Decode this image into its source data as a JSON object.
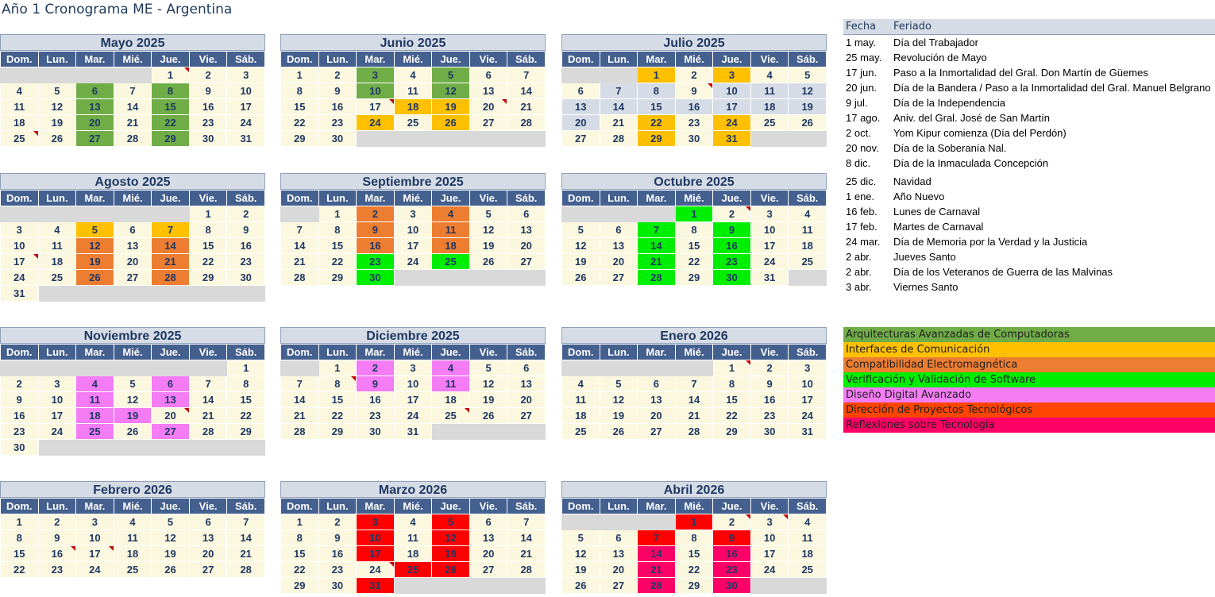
{
  "title": "Año 1 Cronograma ME - Argentina",
  "weekdays": [
    "Dom.",
    "Lun.",
    "Mar.",
    "Mié.",
    "Jue.",
    "Vie.",
    "Sáb."
  ],
  "months": [
    {
      "name": "Mayo 2025",
      "start": 4,
      "days": 31,
      "weeks": 5,
      "colors": {
        "6": "aac",
        "8": "aac",
        "13": "aac",
        "15": "aac",
        "20": "aac",
        "22": "aac",
        "27": "aac",
        "29": "aac"
      },
      "holidays": [
        1,
        25
      ]
    },
    {
      "name": "Junio 2025",
      "start": 0,
      "days": 30,
      "weeks": 5,
      "colors": {
        "3": "aac",
        "5": "aac",
        "10": "aac",
        "12": "aac",
        "18": "int",
        "19": "int",
        "24": "int",
        "26": "int"
      },
      "holidays": [
        17,
        20
      ]
    },
    {
      "name": "Julio 2025",
      "start": 2,
      "days": 31,
      "weeks": 5,
      "colors": {
        "1": "int",
        "3": "int",
        "22": "int",
        "24": "int",
        "29": "int",
        "31": "int"
      },
      "holidays": [
        9
      ],
      "grey": [
        7,
        8,
        9,
        10,
        11,
        12,
        13,
        14,
        15,
        16,
        17,
        18,
        19,
        20
      ]
    },
    {
      "name": "Agosto 2025",
      "start": 5,
      "days": 31,
      "weeks": 6,
      "colors": {
        "5": "int",
        "7": "int",
        "12": "com",
        "14": "com",
        "19": "com",
        "21": "com",
        "26": "com",
        "28": "com"
      },
      "holidays": [
        17
      ]
    },
    {
      "name": "Septiembre 2025",
      "start": 1,
      "days": 30,
      "weeks": 5,
      "colors": {
        "2": "com",
        "4": "com",
        "9": "com",
        "11": "com",
        "16": "com",
        "18": "com",
        "23": "ver",
        "25": "ver",
        "30": "ver"
      },
      "holidays": []
    },
    {
      "name": "Octubre 2025",
      "start": 3,
      "days": 31,
      "weeks": 5,
      "colors": {
        "1": "ver",
        "7": "ver",
        "9": "ver",
        "14": "ver",
        "16": "ver",
        "21": "ver",
        "23": "ver",
        "28": "ver",
        "30": "ver"
      },
      "holidays": [
        2
      ]
    },
    {
      "name": "Noviembre 2025",
      "start": 6,
      "days": 30,
      "weeks": 6,
      "colors": {
        "4": "dis",
        "6": "dis",
        "11": "dis",
        "13": "dis",
        "18": "dis",
        "19": "dis",
        "25": "dis",
        "27": "dis"
      },
      "holidays": [
        20
      ]
    },
    {
      "name": "Diciembre 2025",
      "start": 1,
      "days": 31,
      "weeks": 5,
      "colors": {
        "2": "dis",
        "4": "dis",
        "9": "dis",
        "11": "dis"
      },
      "holidays": [
        8,
        25
      ]
    },
    {
      "name": "Enero 2026",
      "start": 4,
      "days": 31,
      "weeks": 5,
      "colors": {},
      "holidays": [
        1
      ]
    },
    {
      "name": "Febrero 2026",
      "start": 0,
      "days": 28,
      "weeks": 4,
      "colors": {},
      "holidays": [
        16,
        17
      ]
    },
    {
      "name": "Marzo 2026",
      "start": 0,
      "days": 31,
      "weeks": 5,
      "colors": {
        "3": "mar",
        "5": "mar",
        "10": "mar",
        "12": "mar",
        "17": "mar",
        "19": "mar",
        "25": "mar",
        "26": "mar",
        "31": "mar"
      },
      "holidays": [
        24
      ]
    },
    {
      "name": "Abril 2026",
      "start": 3,
      "days": 30,
      "weeks": 5,
      "colors": {
        "1": "mar",
        "7": "mar",
        "9": "mar",
        "14": "ref",
        "16": "ref",
        "21": "ref",
        "23": "ref",
        "28": "ref",
        "30": "ref"
      },
      "holidays": [
        2,
        3
      ]
    }
  ],
  "holiday_table": {
    "col_date": "Fecha",
    "col_name": "Feriado",
    "rows": [
      [
        "1 may.",
        "Día del Trabajador"
      ],
      [
        "25 may.",
        "Revolución de Mayo"
      ],
      [
        "17 jun.",
        "Paso a la Inmortalidad del Gral. Don Martín de Güemes"
      ],
      [
        "20 jun.",
        "Día de la Bandera / Paso a la Inmortalidad del Gral. Manuel Belgrano"
      ],
      [
        "9 jul.",
        "Día de la Independencia"
      ],
      [
        "17 ago.",
        "Aniv. del Gral. José de San Martín"
      ],
      [
        "2 oct.",
        "Yom Kipur comienza (Día del Perdón)"
      ],
      [
        "20 nov.",
        "Día de la Soberanía Nal."
      ],
      [
        "8 dic.",
        "Día de la Inmaculada Concepción"
      ],
      [
        "25 dic.",
        "Navidad"
      ],
      [
        "1 ene.",
        "Año Nuevo"
      ],
      [
        "16 feb.",
        "Lunes de Carnaval"
      ],
      [
        "17 feb.",
        "Martes de Carnaval"
      ],
      [
        "24 mar.",
        "Día de Memoria por la Verdad y la Justicia"
      ],
      [
        "2 abr.",
        "Jueves Santo"
      ],
      [
        "2 abr.",
        "Día de los Veteranos de Guerra de las Malvinas"
      ],
      [
        "3 abr.",
        "Viernes Santo"
      ]
    ]
  },
  "legend": [
    {
      "label": "Arquitecturas Avanzadas de Computadoras",
      "color": "#70ad47"
    },
    {
      "label": "Interfaces de Comunicación",
      "color": "#ffc000"
    },
    {
      "label": "Compatibilidad Electromagnética",
      "color": "#ed7d31"
    },
    {
      "label": "Verificación y Validación de Software",
      "color": "#00ee00"
    },
    {
      "label": "Diseño Digital Avanzado",
      "color": "#f47cf4"
    },
    {
      "label": "Dirección de Proyectos Tecnológicos",
      "color": "#ff4500"
    },
    {
      "label": "Reflexiones sobre Tecnología",
      "color": "#ff0066"
    }
  ]
}
